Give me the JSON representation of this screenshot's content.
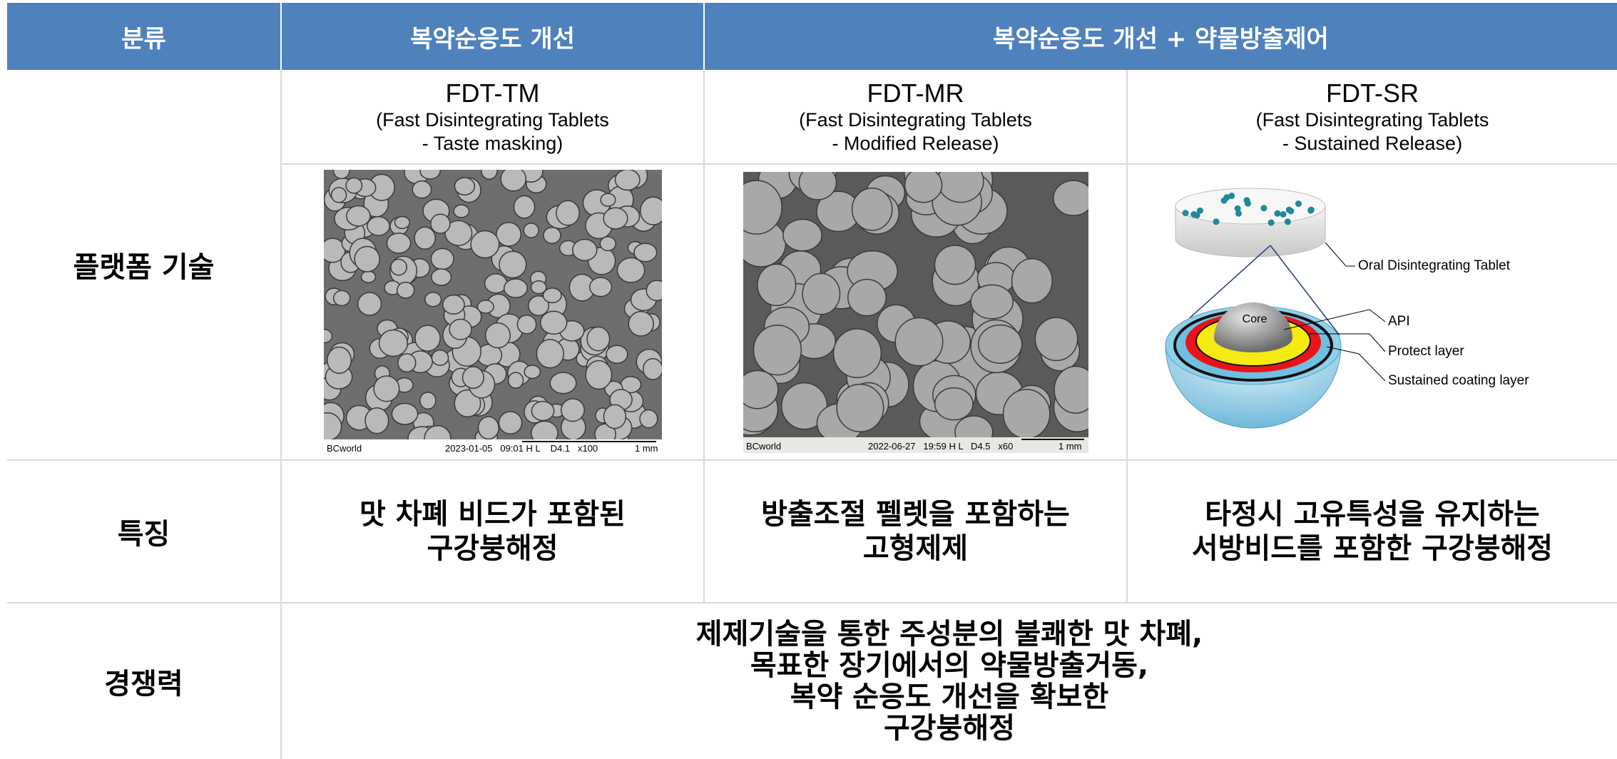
{
  "header": {
    "columns": [
      "분류",
      "복약순응도 개선",
      "복약순응도 개선 + 약물방출제어"
    ]
  },
  "platform": {
    "label": "플랫폼 기술",
    "products": [
      {
        "name": "FDT-TM",
        "description": [
          "(Fast Disintegrating Tablets",
          "- Taste masking)"
        ],
        "image_caption": {
          "source": "BCworld",
          "info": "2023-01-05   09:01 H L    D4.1   x100",
          "scale": "1 mm"
        }
      },
      {
        "name": "FDT-MR",
        "description": [
          "(Fast Disintegrating Tablets",
          "- Modified Release)"
        ],
        "image_caption": {
          "source": "BCworld",
          "info": "2022-06-27   19:59 H L   D4.5   x60",
          "scale": "1 mm"
        }
      },
      {
        "name": "FDT-SR",
        "description": [
          "(Fast Disintegrating Tablets",
          "- Sustained Release)"
        ]
      }
    ],
    "diagram": {
      "tablet": "Oral Disintegrating Tablet",
      "core": "Core",
      "layers": [
        "API",
        "Protect layer",
        "Sustained coating layer"
      ]
    }
  },
  "features": {
    "label": "특징",
    "items": [
      [
        "맛 차폐 비드가 포함된",
        "구강붕해정"
      ],
      [
        "방출조절 펠렛을 포함하는",
        "고형제제"
      ],
      [
        "타정시 고유특성을 유지하는",
        "서방비드를 포함한 구강붕해정"
      ]
    ]
  },
  "competitiveness": {
    "label": "경쟁력",
    "lines": [
      "제제기술을 통한 주성분의 불쾌한 맛 차폐,",
      "목표한 장기에서의 약물방출거동,",
      "복약 순응도 개선을 확보한",
      "구강붕해정"
    ]
  }
}
